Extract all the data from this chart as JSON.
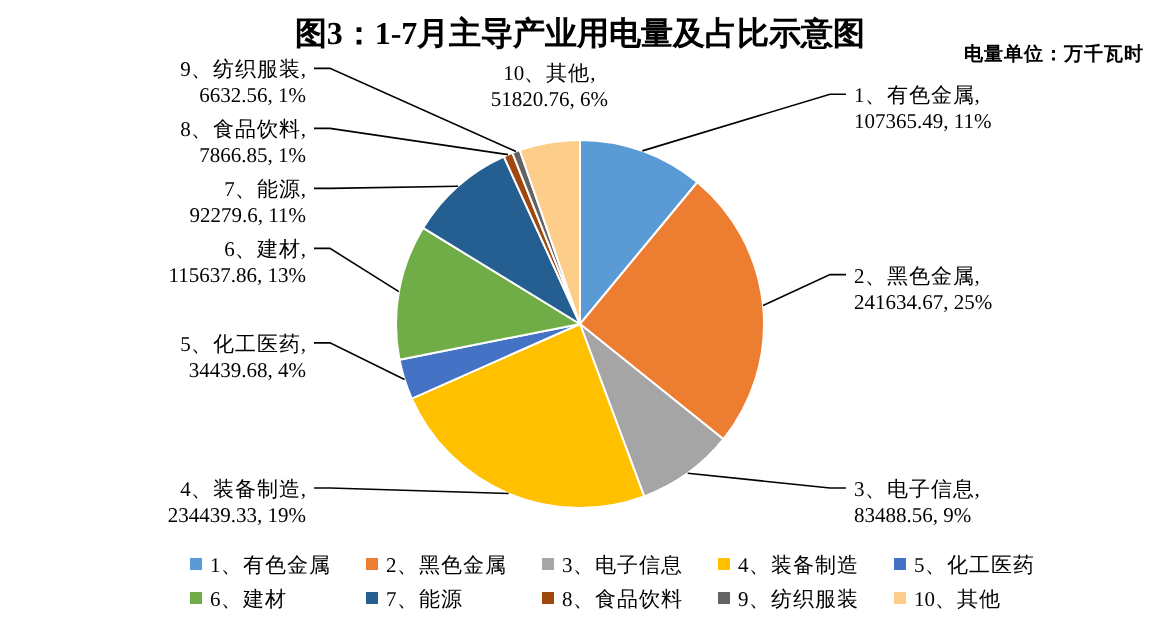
{
  "chart_data": {
    "type": "pie",
    "title": "图3：1-7月主导产业用电量及占比示意图",
    "annotations": [
      "电量单位：万千瓦时"
    ],
    "categories": [
      "1、有色金属",
      "2、黑色金属",
      "3、电子信息",
      "4、装备制造",
      "5、化工医药",
      "6、建材",
      "7、能源",
      "8、食品饮料",
      "9、纺织服装",
      "10、其他"
    ],
    "values": [
      107365.49,
      241634.67,
      83488.56,
      234439.33,
      34439.68,
      115637.86,
      92279.6,
      7866.85,
      6632.56,
      51820.76
    ],
    "value_labels": [
      "1、有色金属, 107365.49, 11%",
      "2、黑色金属, 241634.67, 25%",
      "3、电子信息, 83488.56, 9%",
      "4、装备制造, 234439.33, 19%",
      "5、化工医药, 34439.68, 4%",
      "6、建材, 115637.86, 13%",
      "7、能源, 92279.6, 11%",
      "8、食品饮料, 7866.85, 1%",
      "9、纺织服装, 6632.56, 1%",
      "10、其他, 51820.76, 6%"
    ],
    "data_labels": true,
    "colors": [
      "#5b9bd5",
      "#ed7d31",
      "#a5a5a5",
      "#ffc000",
      "#4472c4",
      "#70ad47",
      "#255e91",
      "#9e480e",
      "#636363",
      "#fdce8a"
    ],
    "legend": "bottom"
  }
}
